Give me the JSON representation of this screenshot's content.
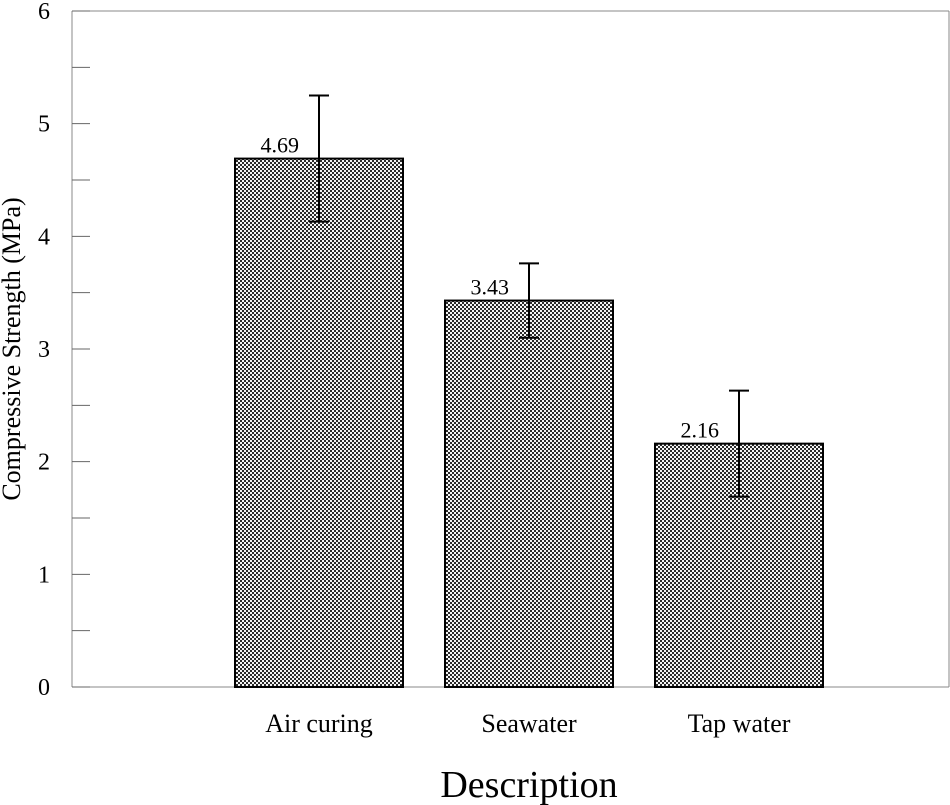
{
  "chart_data": {
    "type": "bar",
    "title": "",
    "xlabel": "Description",
    "ylabel": "Compressive Strength (MPa)",
    "categories": [
      "Air curing",
      "Seawater",
      "Tap water"
    ],
    "values": [
      4.69,
      3.43,
      2.16
    ],
    "value_labels": [
      "4.69",
      "3.43",
      "2.16"
    ],
    "error_upper": [
      5.25,
      3.76,
      2.63
    ],
    "error_lower": [
      4.13,
      3.1,
      1.69
    ],
    "ylim": [
      0,
      6
    ],
    "yticks": [
      "0",
      "1",
      "2",
      "3",
      "4",
      "5",
      "6"
    ],
    "minor_ytick_step": 0.5,
    "grid": false,
    "bar_fill": "crosshatch-checker",
    "bar_colors": {
      "fill_light": "#f4f4f4",
      "fill_dark": "#2a2a2a",
      "edge": "#000000"
    }
  }
}
